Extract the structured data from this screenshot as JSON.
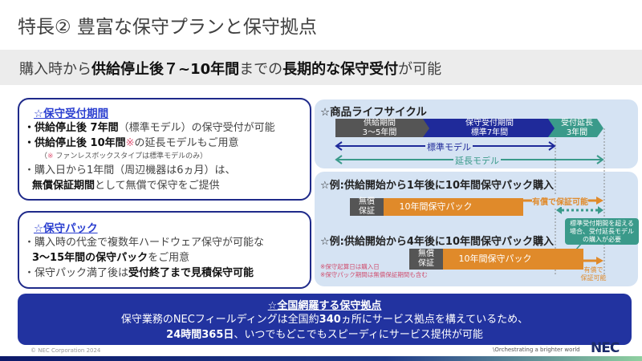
{
  "title": "特長② 豊富な保守プランと保守拠点",
  "headline": {
    "pre": "購入時から",
    "b1": "供給停止後７~10年間",
    "mid": "までの",
    "b2": "長期的な保守受付",
    "post": "が可能"
  },
  "box1": {
    "heading": "☆保守受付期間",
    "l1b": "・供給停止後 7年間",
    "l1": "（標準モデル）の保守受付が可能",
    "l2b": "・供給停止後 10年間",
    "l2mark": "※",
    "l2": "の延長モデルもご用意",
    "note_open": "（",
    "note_mark": "※",
    "note": " ファンレスボックスタイプは標準モデルのみ）",
    "l3": "・購入日から1年間（周辺機器は6ヵ月）は、",
    "l4b": "無償保証期間",
    "l4": "として無償で保守をご提供"
  },
  "box2": {
    "heading": "☆保守パック",
    "l1": "・購入時の代金で複数年ハードウェア保守が可能な",
    "l2b": "3～15年間の保守パック",
    "l2": "をご用意",
    "l3": "・保守パック満了後は",
    "l3b": "受付終了まで見積保守可能"
  },
  "lifecycle": {
    "title": "☆商品ライフサイクル",
    "seg1": [
      "供給期間",
      "3～5年間"
    ],
    "seg2": [
      "保守受付期間",
      "標準7年間"
    ],
    "seg3": [
      "受付延長",
      "3年間"
    ],
    "standard": "標準モデル",
    "extended": "延長モデル"
  },
  "example": {
    "title1": "☆例:供給開始から1年後に10年間保守パック購入",
    "title2": "☆例:供給開始から4年後に10年間保守パック購入",
    "free": [
      "無償",
      "保証"
    ],
    "pack": "10年間保守パック",
    "paid": "有償で保証可能",
    "paid2": [
      "有償で",
      "保証可能"
    ],
    "callout": [
      "標準受付期間を超える",
      "場合、受付延長モデル",
      "の購入が必要"
    ],
    "notes": [
      "※保守起算日は購入日",
      "※保守パック期間は無償保証期間も含む"
    ]
  },
  "bottom": {
    "heading": "☆全国網羅する保守拠点",
    "l1a": "保守業務のNECフィールディングは全国約",
    "l1b": "340",
    "l1c": "ヵ所にサービス拠点を構えているため、",
    "l2b": "24時間365日",
    "l2": "、いつでもどこでもスピーディにサービス提供が可能"
  },
  "footer": {
    "copyright": "© NEC Corporation 2024",
    "tagline": "\\Orchestrating a brighter world",
    "logo": "NEC"
  },
  "colors": {
    "navy": "#1f2a8a",
    "blue": "#2233a0",
    "teal": "#3a9a8a",
    "orange": "#e08a2a",
    "gray": "#555555",
    "panel": "#d5e3f3"
  }
}
